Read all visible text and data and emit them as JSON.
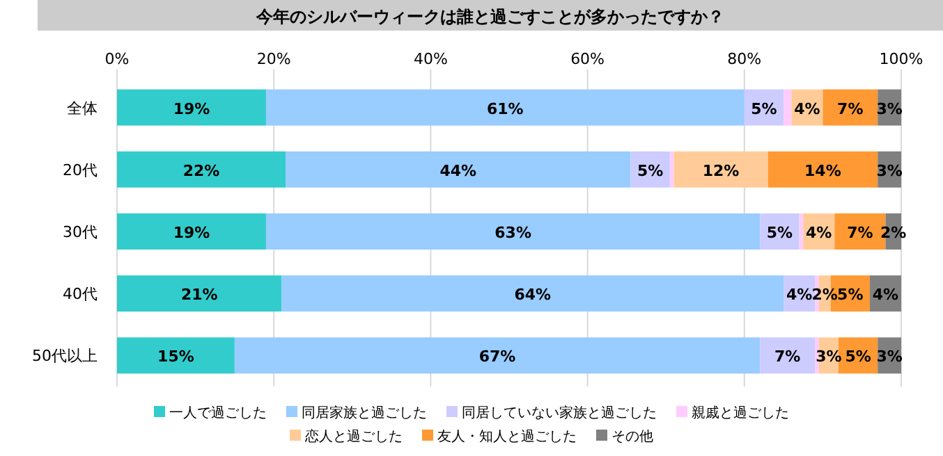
{
  "chart_data": {
    "type": "bar",
    "title": "今年のシルバーウィークは誰と過ごすことが多かったですか？",
    "orientation": "horizontal",
    "stacked": true,
    "categories": [
      "全体",
      "20代",
      "30代",
      "40代",
      "50代以上"
    ],
    "xlim": [
      0,
      100
    ],
    "xticks": [
      {
        "value": 0,
        "label": "0%"
      },
      {
        "value": 20,
        "label": "20%"
      },
      {
        "value": 40,
        "label": "40%"
      },
      {
        "value": 60,
        "label": "60%"
      },
      {
        "value": 80,
        "label": "80%"
      },
      {
        "value": 100,
        "label": "100%"
      }
    ],
    "grid": "x",
    "legend": "bottom",
    "series": [
      {
        "name": "一人で過ごした",
        "color": "#33cccc",
        "values": [
          19,
          21.5,
          19,
          21,
          15
        ],
        "value_labels": [
          "19%",
          "22%",
          "19%",
          "21%",
          "15%"
        ]
      },
      {
        "name": "同居家族と過ごした",
        "color": "#99ccff",
        "values": [
          61,
          44,
          63,
          64,
          67
        ],
        "value_labels": [
          "61%",
          "44%",
          "63%",
          "64%",
          "67%"
        ]
      },
      {
        "name": "同居していない家族と過ごした",
        "color": "#ccccff",
        "values": [
          5,
          5,
          5,
          4,
          7
        ],
        "value_labels": [
          "5%",
          "5%",
          "5%",
          "4%",
          "7%"
        ]
      },
      {
        "name": "親戚と過ごした",
        "color": "#ffccff",
        "values": [
          1,
          0.5,
          0.5,
          0.5,
          0.5
        ],
        "value_labels": [
          null,
          null,
          null,
          null,
          null
        ]
      },
      {
        "name": "恋人と過ごした",
        "color": "#ffcc99",
        "values": [
          4,
          12,
          4,
          1.5,
          2.5
        ],
        "value_labels": [
          "4%",
          "12%",
          "4%",
          "2%",
          "3%"
        ]
      },
      {
        "name": "友人・知人と過ごした",
        "color": "#ff9933",
        "values": [
          7,
          14,
          6.5,
          5,
          5
        ],
        "value_labels": [
          "7%",
          "14%",
          "7%",
          "5%",
          "5%"
        ]
      },
      {
        "name": "その他",
        "color": "#808080",
        "values": [
          3,
          3,
          2,
          4,
          3
        ],
        "value_labels": [
          "3%",
          "3%",
          "2%",
          "4%",
          "3%"
        ]
      }
    ]
  }
}
